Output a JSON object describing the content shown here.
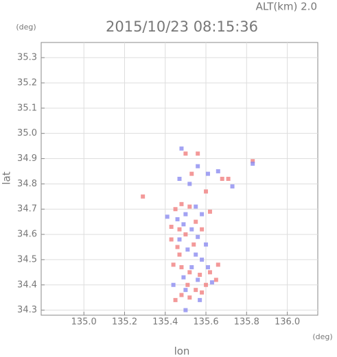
{
  "chart_data": {
    "type": "scatter",
    "title": "2015/10/23 08:15:36",
    "subtitle": "ALT(km) 2.0",
    "x_unit": "(deg)",
    "y_unit": "(deg)",
    "x_label": "lon",
    "y_label": "lat",
    "xlim": [
      134.79,
      136.15
    ],
    "ylim": [
      34.28,
      35.36
    ],
    "xticks": [
      {
        "value": 135,
        "label": "135.0"
      },
      {
        "value": 135.2,
        "label": "135.2"
      },
      {
        "value": 135.4,
        "label": "135.4"
      },
      {
        "value": 135.6,
        "label": "135.6"
      },
      {
        "value": 135.8,
        "label": "135.8"
      },
      {
        "value": 136,
        "label": "136.0"
      }
    ],
    "yticks": [
      34.3,
      34.4,
      34.5,
      34.6,
      34.7,
      34.8,
      34.9,
      {
        "value": 35,
        "label": "35.0"
      },
      35.1,
      35.2,
      35.3
    ],
    "grid": true,
    "series": [
      {
        "color": "#f08080",
        "x": [
          135.29,
          135.5,
          135.56,
          135.53,
          135.6,
          135.68,
          135.71,
          135.83,
          135.45,
          135.48,
          135.52,
          135.47,
          135.43,
          135.46,
          135.5,
          135.55,
          135.58,
          135.44,
          135.48,
          135.52,
          135.57,
          135.62,
          135.65,
          135.6,
          135.55,
          135.48,
          135.52,
          135.58,
          135.45,
          135.66,
          135.43,
          135.62,
          135.54,
          135.47,
          135.51
        ],
        "y": [
          34.75,
          34.92,
          34.92,
          34.84,
          34.77,
          34.82,
          34.82,
          34.89,
          34.7,
          34.72,
          34.71,
          34.62,
          34.58,
          34.55,
          34.6,
          34.65,
          34.62,
          34.48,
          34.47,
          34.45,
          34.44,
          34.45,
          34.42,
          34.4,
          34.38,
          34.36,
          34.35,
          34.37,
          34.34,
          34.48,
          34.63,
          34.69,
          34.56,
          34.52,
          34.4
        ]
      },
      {
        "color": "#8c8cf0",
        "x": [
          135.48,
          135.56,
          135.61,
          135.66,
          135.73,
          135.83,
          135.47,
          135.52,
          135.5,
          135.55,
          135.58,
          135.46,
          135.49,
          135.53,
          135.56,
          135.51,
          135.55,
          135.58,
          135.61,
          135.53,
          135.56,
          135.49,
          135.63,
          135.5,
          135.57,
          135.5,
          135.44,
          135.47,
          135.6,
          135.41
        ],
        "y": [
          34.94,
          34.87,
          34.84,
          34.85,
          34.79,
          34.88,
          34.82,
          34.8,
          34.68,
          34.71,
          34.68,
          34.66,
          34.64,
          34.62,
          34.59,
          34.54,
          34.52,
          34.5,
          34.47,
          34.47,
          34.42,
          34.43,
          34.41,
          34.38,
          34.34,
          34.3,
          34.4,
          34.58,
          34.56,
          34.67
        ]
      }
    ]
  }
}
